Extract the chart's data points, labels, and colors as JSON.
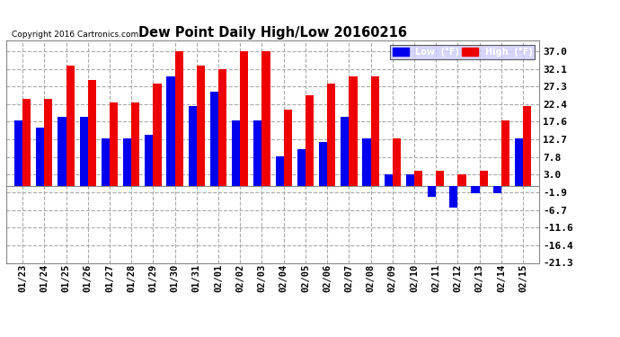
{
  "title": "Dew Point Daily High/Low 20160216",
  "copyright": "Copyright 2016 Cartronics.com",
  "dates": [
    "01/23",
    "01/24",
    "01/25",
    "01/26",
    "01/27",
    "01/28",
    "01/29",
    "01/30",
    "01/31",
    "02/01",
    "02/02",
    "02/03",
    "02/04",
    "02/05",
    "02/06",
    "02/07",
    "02/08",
    "02/09",
    "02/10",
    "02/11",
    "02/12",
    "02/13",
    "02/14",
    "02/15"
  ],
  "low_vals": [
    18,
    16,
    19,
    19,
    13,
    13,
    14,
    30,
    22,
    26,
    18,
    18,
    8,
    10,
    12,
    19,
    13,
    3,
    3,
    -3,
    -6,
    -2,
    -2,
    13
  ],
  "high_vals": [
    24,
    24,
    33,
    29,
    23,
    23,
    28,
    37,
    33,
    32,
    37,
    37,
    21,
    25,
    28,
    30,
    30,
    13,
    4,
    4,
    3,
    4,
    18,
    22
  ],
  "low_color": "#0000ee",
  "high_color": "#ee0000",
  "bg_color": "#ffffff",
  "yticks": [
    37.0,
    32.1,
    27.3,
    22.4,
    17.6,
    12.7,
    7.8,
    3.0,
    -1.9,
    -6.7,
    -11.6,
    -16.4,
    -21.3
  ],
  "ylim": [
    -21.3,
    40.0
  ],
  "bar_width": 0.38,
  "legend_low_label": "Low  (°F)",
  "legend_high_label": "High  (°F)"
}
